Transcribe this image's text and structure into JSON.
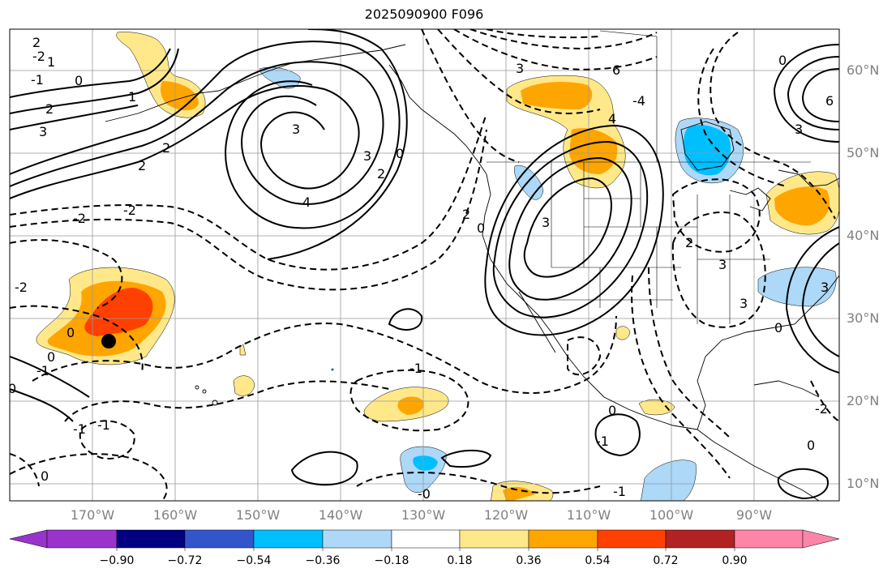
{
  "title": "2025090900 F096",
  "lat_labels": [
    "60°N",
    "50°N",
    "40°N",
    "30°N",
    "20°N",
    "10°N"
  ],
  "lon_labels": [
    "170°W",
    "160°W",
    "150°W",
    "140°W",
    "130°W",
    "120°W",
    "110°W",
    "100°W",
    "90°W"
  ],
  "colorbar": {
    "ticks": [
      "−0.90",
      "−0.72",
      "−0.54",
      "−0.36",
      "−0.18",
      "0.18",
      "0.36",
      "0.54",
      "0.72",
      "0.90"
    ],
    "colors": [
      "#9933cc",
      "#000080",
      "#3355cc",
      "#00bfff",
      "#add8f7",
      "#ffffff",
      "#ffe88a",
      "#ffa500",
      "#ff4000",
      "#b22222",
      "#ff85a8"
    ]
  },
  "contour_labels": [
    "2",
    "-2",
    "1",
    "0",
    "-1",
    "2",
    "3",
    "1",
    "2",
    "2",
    "-2",
    "3",
    "4",
    "3",
    "2",
    "0",
    "-2",
    "2",
    "-2",
    "0",
    "0",
    "-1",
    "0",
    "-1",
    "-1",
    "0",
    "-1",
    "-1",
    "-0",
    "3",
    "6",
    "-4",
    "4",
    "3",
    "0",
    "0",
    "-1",
    "3",
    "2",
    "3",
    "0",
    "-2",
    "3",
    "0",
    "0",
    "3",
    "6"
  ]
}
